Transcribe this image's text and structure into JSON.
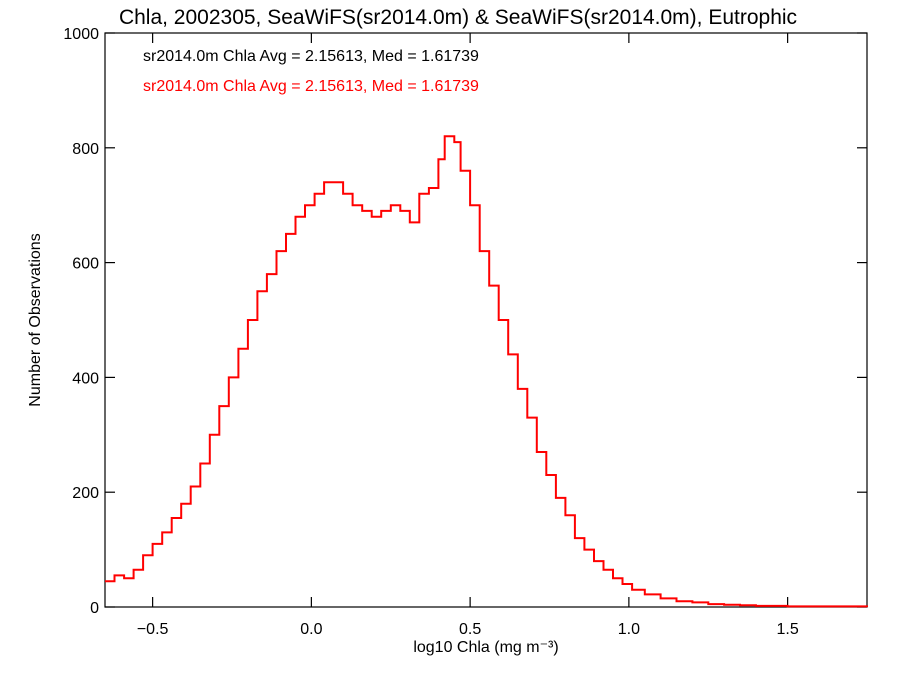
{
  "chart_data": {
    "type": "line",
    "title": "Chla, 2002305, SeaWiFS(sr2014.0m) & SeaWiFS(sr2014.0m), Eutrophic",
    "xlabel": "log10 Chla (mg m⁻³)",
    "ylabel": "Number of Observations",
    "xlim": [
      -0.65,
      1.75
    ],
    "ylim": [
      0,
      1000
    ],
    "xticks": [
      "−0.5",
      "0.0",
      "0.5",
      "1.0",
      "1.5"
    ],
    "xtick_values": [
      -0.5,
      0.0,
      0.5,
      1.0,
      1.5
    ],
    "yticks": [
      "0",
      "200",
      "400",
      "600",
      "800",
      "1000"
    ],
    "ytick_values": [
      0,
      200,
      400,
      600,
      800,
      1000
    ],
    "annotations": [
      {
        "text": "sr2014.0m Chla Avg = 2.15613, Med = 1.61739",
        "color": "#000000"
      },
      {
        "text": "sr2014.0m Chla Avg = 2.15613, Med = 1.61739",
        "color": "#ff0000"
      }
    ],
    "series": [
      {
        "color": "#ff0000",
        "style": "step",
        "x": [
          -0.65,
          -0.62,
          -0.59,
          -0.56,
          -0.53,
          -0.5,
          -0.47,
          -0.44,
          -0.41,
          -0.38,
          -0.35,
          -0.32,
          -0.29,
          -0.26,
          -0.23,
          -0.2,
          -0.17,
          -0.14,
          -0.11,
          -0.08,
          -0.05,
          -0.02,
          0.01,
          0.04,
          0.07,
          0.1,
          0.13,
          0.16,
          0.19,
          0.22,
          0.25,
          0.28,
          0.31,
          0.34,
          0.37,
          0.4,
          0.42,
          0.45,
          0.47,
          0.5,
          0.53,
          0.56,
          0.59,
          0.62,
          0.65,
          0.68,
          0.71,
          0.74,
          0.77,
          0.8,
          0.83,
          0.86,
          0.89,
          0.92,
          0.95,
          0.98,
          1.01,
          1.05,
          1.1,
          1.15,
          1.2,
          1.25,
          1.3,
          1.35,
          1.4,
          1.5,
          1.6,
          1.75
        ],
        "y": [
          45,
          55,
          50,
          65,
          90,
          110,
          130,
          155,
          180,
          210,
          250,
          300,
          350,
          400,
          450,
          500,
          550,
          580,
          620,
          650,
          680,
          700,
          720,
          740,
          740,
          720,
          700,
          690,
          680,
          690,
          700,
          690,
          670,
          720,
          730,
          780,
          820,
          810,
          760,
          700,
          620,
          560,
          500,
          440,
          380,
          330,
          270,
          230,
          190,
          160,
          120,
          100,
          80,
          65,
          50,
          40,
          30,
          22,
          15,
          10,
          8,
          5,
          4,
          3,
          2,
          1,
          1,
          0
        ]
      }
    ]
  }
}
